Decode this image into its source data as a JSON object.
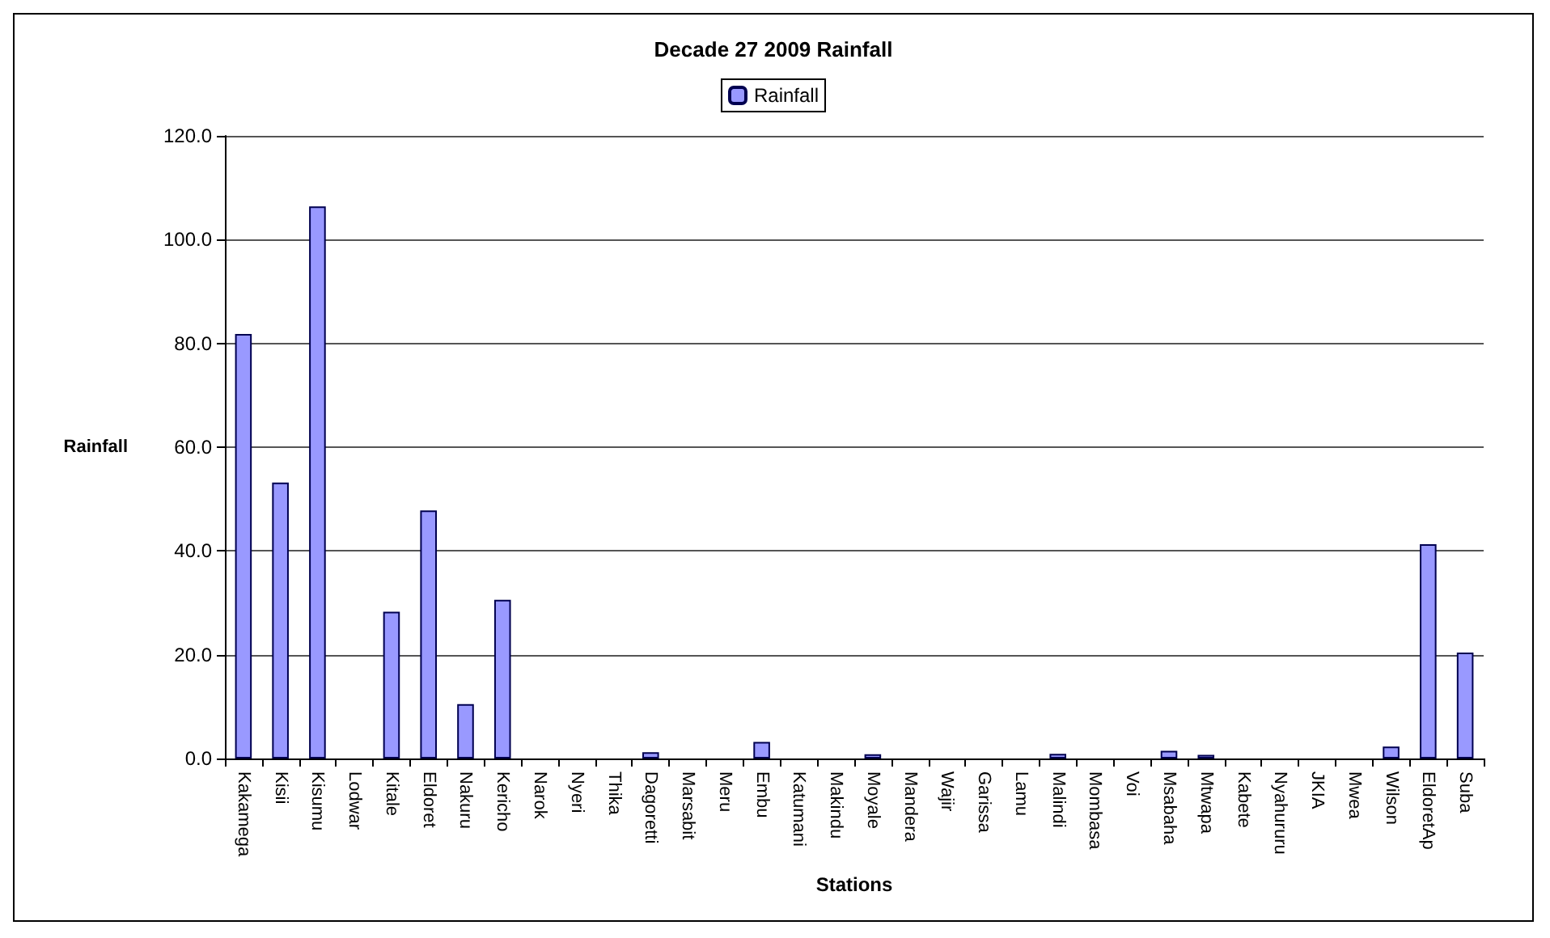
{
  "chart_data": {
    "type": "bar",
    "title": "Decade 27 2009 Rainfall",
    "xlabel": "Stations",
    "ylabel": "Rainfall",
    "categories": [
      "Kakamega",
      "Kisii",
      "Kisumu",
      "Lodwar",
      "Kitale",
      "Eldoret",
      "Nakuru",
      "Kericho",
      "Narok",
      "Nyeri",
      "Thika",
      "Dagoretti",
      "Marsabit",
      "Meru",
      "Embu",
      "Katumani",
      "Makindu",
      "Moyale",
      "Mandera",
      "Wajir",
      "Garissa",
      "Lamu",
      "Malindi",
      "Mombasa",
      "Voi",
      "Msabaha",
      "Mtwapa",
      "Kabete",
      "Nyahururu",
      "JKIA",
      "Mwea",
      "Wilson",
      "EldoretAp",
      "Suba"
    ],
    "series": [
      {
        "name": "Rainfall",
        "color": "#9999ff",
        "values": [
          81.8,
          53.2,
          106.4,
          0,
          28.3,
          47.8,
          10.5,
          30.6,
          0,
          0,
          0,
          1.2,
          0,
          0,
          3.2,
          0,
          0,
          0.8,
          0,
          0,
          0,
          0,
          0.9,
          0,
          0,
          1.5,
          0.7,
          0,
          0,
          0,
          0,
          2.3,
          41.3,
          20.4
        ]
      }
    ],
    "ylim": [
      0,
      120
    ],
    "yticks": [
      {
        "value": 0,
        "label": "0.0"
      },
      {
        "value": 20,
        "label": "20.0"
      },
      {
        "value": 40,
        "label": "40.0"
      },
      {
        "value": 60,
        "label": "60.0"
      },
      {
        "value": 80,
        "label": "80.0"
      },
      {
        "value": 100,
        "label": "100.0"
      },
      {
        "value": 120,
        "label": "120.0"
      }
    ],
    "grid": "y",
    "legend": "top"
  }
}
